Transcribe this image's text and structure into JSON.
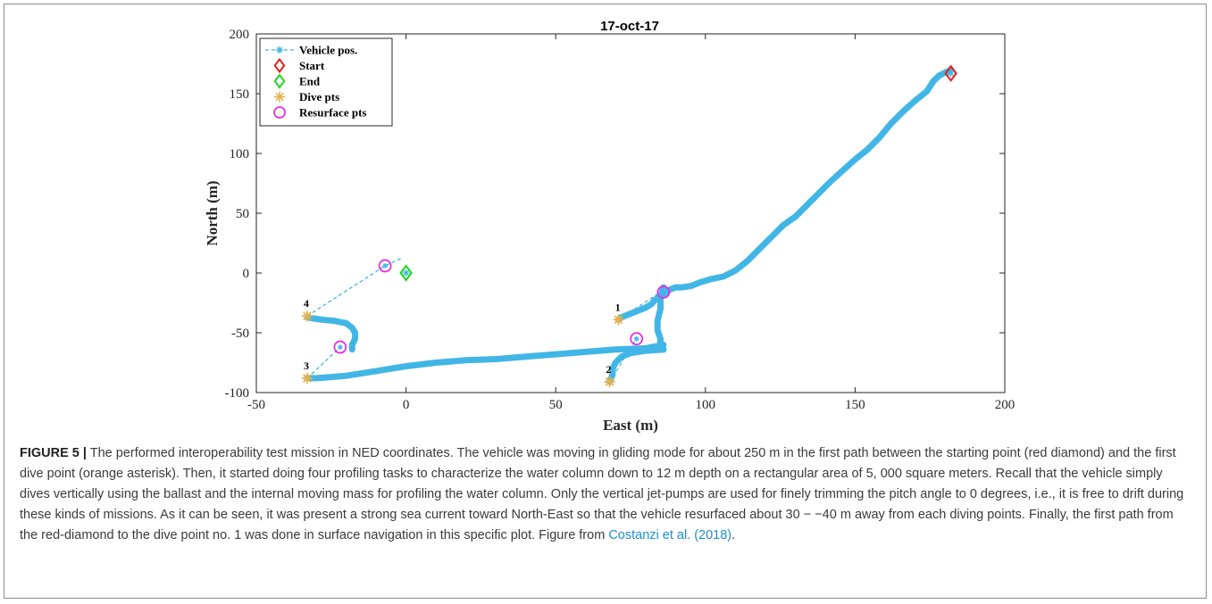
{
  "chart_data": {
    "type": "scatter",
    "title": "17-oct-17",
    "xlabel": "East (m)",
    "ylabel": "North (m)",
    "xlim": [
      -50,
      200
    ],
    "ylim": [
      -100,
      200
    ],
    "xticks": [
      "-50",
      "0",
      "50",
      "100",
      "150",
      "200"
    ],
    "yticks": [
      "-100",
      "-50",
      "0",
      "50",
      "100",
      "150",
      "200"
    ],
    "grid": false,
    "legend_position": "top-left",
    "legend": [
      {
        "label": "Vehicle pos.",
        "marker": "asterisk-dashed-line",
        "color": "#41b6e6"
      },
      {
        "label": "Start",
        "marker": "diamond",
        "color": "#e4201c"
      },
      {
        "label": "End",
        "marker": "diamond",
        "color": "#1ed81e"
      },
      {
        "label": "Dive pts",
        "marker": "asterisk",
        "color": "#e8b14a"
      },
      {
        "label": "Resurface pts",
        "marker": "circle",
        "color": "#e62fe6"
      }
    ],
    "series": [
      {
        "name": "Vehicle pos.",
        "style": "thick-track",
        "color": "#41b6e6",
        "segments": [
          {
            "x": [
              182,
              178,
              176,
              174,
              170,
              166,
              162,
              158,
              154,
              150,
              146,
              142,
              138,
              134,
              130,
              126,
              122,
              118,
              114,
              110,
              106,
              102,
              98,
              95,
              92,
              90,
              88,
              87,
              86,
              85,
              84,
              83,
              82,
              80,
              77,
              74,
              72,
              71
            ],
            "y": [
              170,
              165,
              160,
              152,
              144,
              135,
              125,
              113,
              103,
              95,
              86,
              77,
              67,
              57,
              47,
              40,
              30,
              20,
              10,
              2,
              -3,
              -5,
              -8,
              -11,
              -12,
              -12,
              -14,
              -16,
              -18,
              -20,
              -21,
              -23,
              -26,
              -29,
              -32,
              -35,
              -37,
              -39
            ]
          },
          {
            "x": [
              86,
              85,
              85,
              84,
              84,
              85,
              85,
              86
            ],
            "y": [
              -12,
              -20,
              -30,
              -40,
              -48,
              -55,
              -60,
              -64
            ]
          },
          {
            "x": [
              86,
              80,
              75,
              72,
              70,
              69,
              69,
              68
            ],
            "y": [
              -64,
              -65,
              -67,
              -70,
              -75,
              -80,
              -85,
              -91
            ]
          },
          {
            "x": [
              86,
              80,
              70,
              60,
              50,
              40,
              30,
              20,
              10,
              0,
              -5,
              -10,
              -15,
              -20,
              -25,
              -30,
              -33
            ],
            "y": [
              -60,
              -63,
              -64,
              -66,
              -68,
              -70,
              -72,
              -73,
              -75,
              -78,
              -80,
              -82,
              -84,
              -86,
              -87,
              -88,
              -88
            ]
          },
          {
            "x": [
              -18,
              -18,
              -17,
              -17,
              -18,
              -20,
              -24,
              -28,
              -31,
              -33
            ],
            "y": [
              -64,
              -60,
              -55,
              -50,
              -46,
              -42,
              -40,
              -39,
              -38,
              -37
            ]
          }
        ]
      },
      {
        "name": "Vehicle pos.",
        "style": "dashed",
        "color": "#41b6e6",
        "segments": [
          {
            "x": [
              71,
              85
            ],
            "y": [
              -39,
              -16
            ]
          },
          {
            "x": [
              68,
              77
            ],
            "y": [
              -91,
              -55
            ]
          },
          {
            "x": [
              -33,
              -22
            ],
            "y": [
              -88,
              -62
            ]
          },
          {
            "x": [
              -33,
              -7,
              -1
            ],
            "y": [
              -36,
              6,
              13
            ]
          }
        ]
      },
      {
        "name": "Start",
        "x": [
          182
        ],
        "y": [
          167
        ]
      },
      {
        "name": "End",
        "x": [
          0
        ],
        "y": [
          0
        ]
      },
      {
        "name": "Dive pts",
        "x": [
          71,
          68,
          -33,
          -33
        ],
        "y": [
          -39,
          -91,
          -88,
          -36
        ],
        "labels": [
          "1",
          "2",
          "3",
          "4"
        ]
      },
      {
        "name": "Resurface pts",
        "x": [
          86,
          77,
          -22,
          -7
        ],
        "y": [
          -16,
          -55,
          -62,
          6
        ]
      }
    ]
  },
  "caption": {
    "figure_label": "FIGURE 5 |",
    "text": " The performed interoperability test mission in NED coordinates. The vehicle was moving in gliding mode for about 250 m in the first path between the starting point (red diamond) and the first dive point (orange asterisk). Then, it started doing four profiling tasks to characterize the water column down to 12 m depth on a rectangular area of 5, 000 square meters. Recall that the vehicle simply dives vertically using the ballast and the internal moving mass for profiling the water column. Only the vertical jet-pumps are used for finely trimming the pitch angle to 0 degrees, i.e., it is free to drift during these kinds of missions. As it can be seen, it was present a strong sea current toward North-East so that the vehicle resurfaced about 30 − −40 m away from each diving points. Finally, the first path from the red-diamond to the dive point no. 1 was done in surface navigation in this specific plot. Figure from ",
    "citation": "Costanzi et al. (2018)",
    "end": "."
  }
}
